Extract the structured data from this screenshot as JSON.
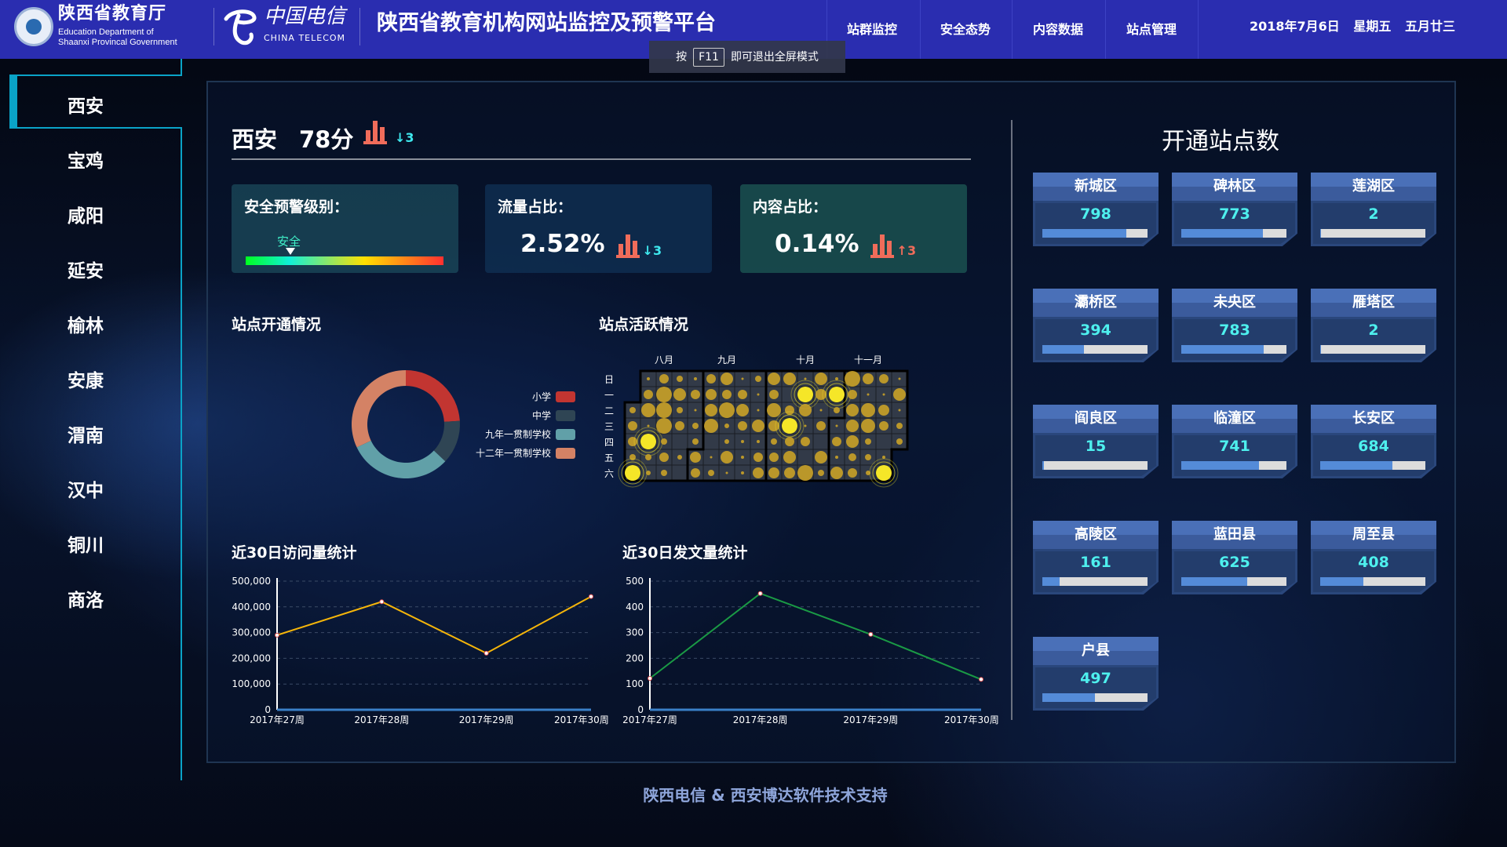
{
  "header": {
    "org_cn": "陕西省教育厅",
    "org_en_1": "Education Department of",
    "org_en_2": "Shaanxi Provincal Government",
    "telecom_cn": "中国电信",
    "telecom_en": "CHINA TELECOM",
    "title": "陕西省教育机构网站监控及预警平台",
    "nav": [
      "站群监控",
      "安全态势",
      "内容数据",
      "站点管理"
    ],
    "date": "2018年7月6日 星期五 五月廿三"
  },
  "toast": {
    "prefix": "按",
    "key": "F11",
    "suffix": "即可退出全屏模式"
  },
  "sidebar": {
    "items": [
      "西安",
      "宝鸡",
      "咸阳",
      "延安",
      "榆林",
      "安康",
      "渭南",
      "汉中",
      "铜川",
      "商洛"
    ],
    "active": 0
  },
  "summary": {
    "city": "西安",
    "score": "78分",
    "score_trend": "↓3",
    "safety_label": "安全预警级别：",
    "safety_level": "安全",
    "traffic_label": "流量占比：",
    "traffic_value": "2.52%",
    "traffic_trend": "↓3",
    "content_label": "内容占比：",
    "content_value": "0.14%",
    "content_trend": "↑3",
    "colors": {
      "trend_down": "#3ee8ee",
      "trend_up": "#f06c5a",
      "bar_icon": "#f06c5a"
    }
  },
  "chart_data": [
    {
      "type": "pie",
      "title": "站点开通情况",
      "donut": true,
      "categories": [
        "小学",
        "中学",
        "九年一贯制学校",
        "十二年一贯制学校"
      ],
      "values": [
        24,
        13,
        31,
        32
      ],
      "colors": [
        "#c23531",
        "#2f4554",
        "#61a0a8",
        "#d48265"
      ],
      "legend": "right"
    },
    {
      "type": "heatmap",
      "title": "站点活跃情况",
      "months": [
        "八月",
        "九月",
        "十月",
        "十一月"
      ],
      "weekdays": [
        "日",
        "一",
        "二",
        "三",
        "四",
        "五",
        "六"
      ],
      "grid": [
        [
          null,
          1,
          3,
          2,
          1,
          3,
          4,
          0.5,
          2,
          4,
          4,
          0.3,
          4,
          1,
          5,
          3.5,
          3,
          0.3
        ],
        [
          null,
          3,
          5,
          4,
          3,
          3.5,
          3,
          3,
          0.5,
          3,
          0,
          6,
          3.5,
          6,
          3,
          0.5,
          0.3,
          4
        ],
        [
          2,
          4.5,
          5,
          2,
          0.5,
          4,
          5,
          4,
          0.3,
          4.5,
          3,
          4,
          0.5,
          2,
          4,
          4.5,
          3.5,
          0.5
        ],
        [
          3,
          0.5,
          5,
          3,
          2,
          4.5,
          1.5,
          3,
          4,
          3.5,
          6,
          0.5,
          3,
          0.5,
          4,
          4.5,
          3,
          2
        ],
        [
          3,
          6,
          2,
          0,
          2,
          0,
          1.5,
          1,
          1,
          2,
          3,
          3,
          0,
          3,
          4,
          2,
          0,
          2
        ],
        [
          2,
          2,
          3,
          1.5,
          3.5,
          0.5,
          4,
          1,
          3,
          3,
          4,
          0,
          4,
          1,
          2.5,
          2,
          1,
          null
        ],
        [
          6,
          1.5,
          2,
          0,
          3,
          2,
          0.5,
          1,
          3.5,
          3.5,
          3.5,
          5,
          2,
          4,
          3,
          1.5,
          6,
          null
        ]
      ],
      "colors": {
        "point": "#c9a227",
        "highlight": "#f5e628",
        "cell": "#323a48"
      }
    },
    {
      "type": "line",
      "title": "近30日访问量统计",
      "categories": [
        "2017年27周",
        "2017年28周",
        "2017年29周",
        "2017年30周"
      ],
      "values": [
        290000,
        420000,
        220000,
        440000
      ],
      "ylim": [
        0,
        500000
      ],
      "yticks": [
        "0",
        "100,000",
        "200,000",
        "300,000",
        "400,000",
        "500,000"
      ],
      "color": "#f5b50a",
      "grid": true
    },
    {
      "type": "line",
      "title": "近30日发文量统计",
      "categories": [
        "2017年27周",
        "2017年28周",
        "2017年29周",
        "2017年30周"
      ],
      "values": [
        122,
        452,
        293,
        118
      ],
      "ylim": [
        0,
        500
      ],
      "yticks": [
        "0",
        "100",
        "200",
        "300",
        "400",
        "500"
      ],
      "color": "#1a9a45",
      "grid": true
    }
  ],
  "sites": {
    "title": "开通站点数",
    "districts": [
      {
        "name": "新城区",
        "value": "798",
        "fill": 0.798
      },
      {
        "name": "碑林区",
        "value": "773",
        "fill": 0.773
      },
      {
        "name": "莲湖区",
        "value": "2",
        "fill": 0.002
      },
      {
        "name": "灞桥区",
        "value": "394",
        "fill": 0.394
      },
      {
        "name": "未央区",
        "value": "783",
        "fill": 0.783
      },
      {
        "name": "雁塔区",
        "value": "2",
        "fill": 0.002
      },
      {
        "name": "阎良区",
        "value": "15",
        "fill": 0.015
      },
      {
        "name": "临潼区",
        "value": "741",
        "fill": 0.741
      },
      {
        "name": "长安区",
        "value": "684",
        "fill": 0.684
      },
      {
        "name": "高陵区",
        "value": "161",
        "fill": 0.161
      },
      {
        "name": "蓝田县",
        "value": "625",
        "fill": 0.625
      },
      {
        "name": "周至县",
        "value": "408",
        "fill": 0.408
      },
      {
        "name": "户县",
        "value": "497",
        "fill": 0.497
      }
    ]
  },
  "footer": "陕西电信 & 西安博达软件技术支持"
}
